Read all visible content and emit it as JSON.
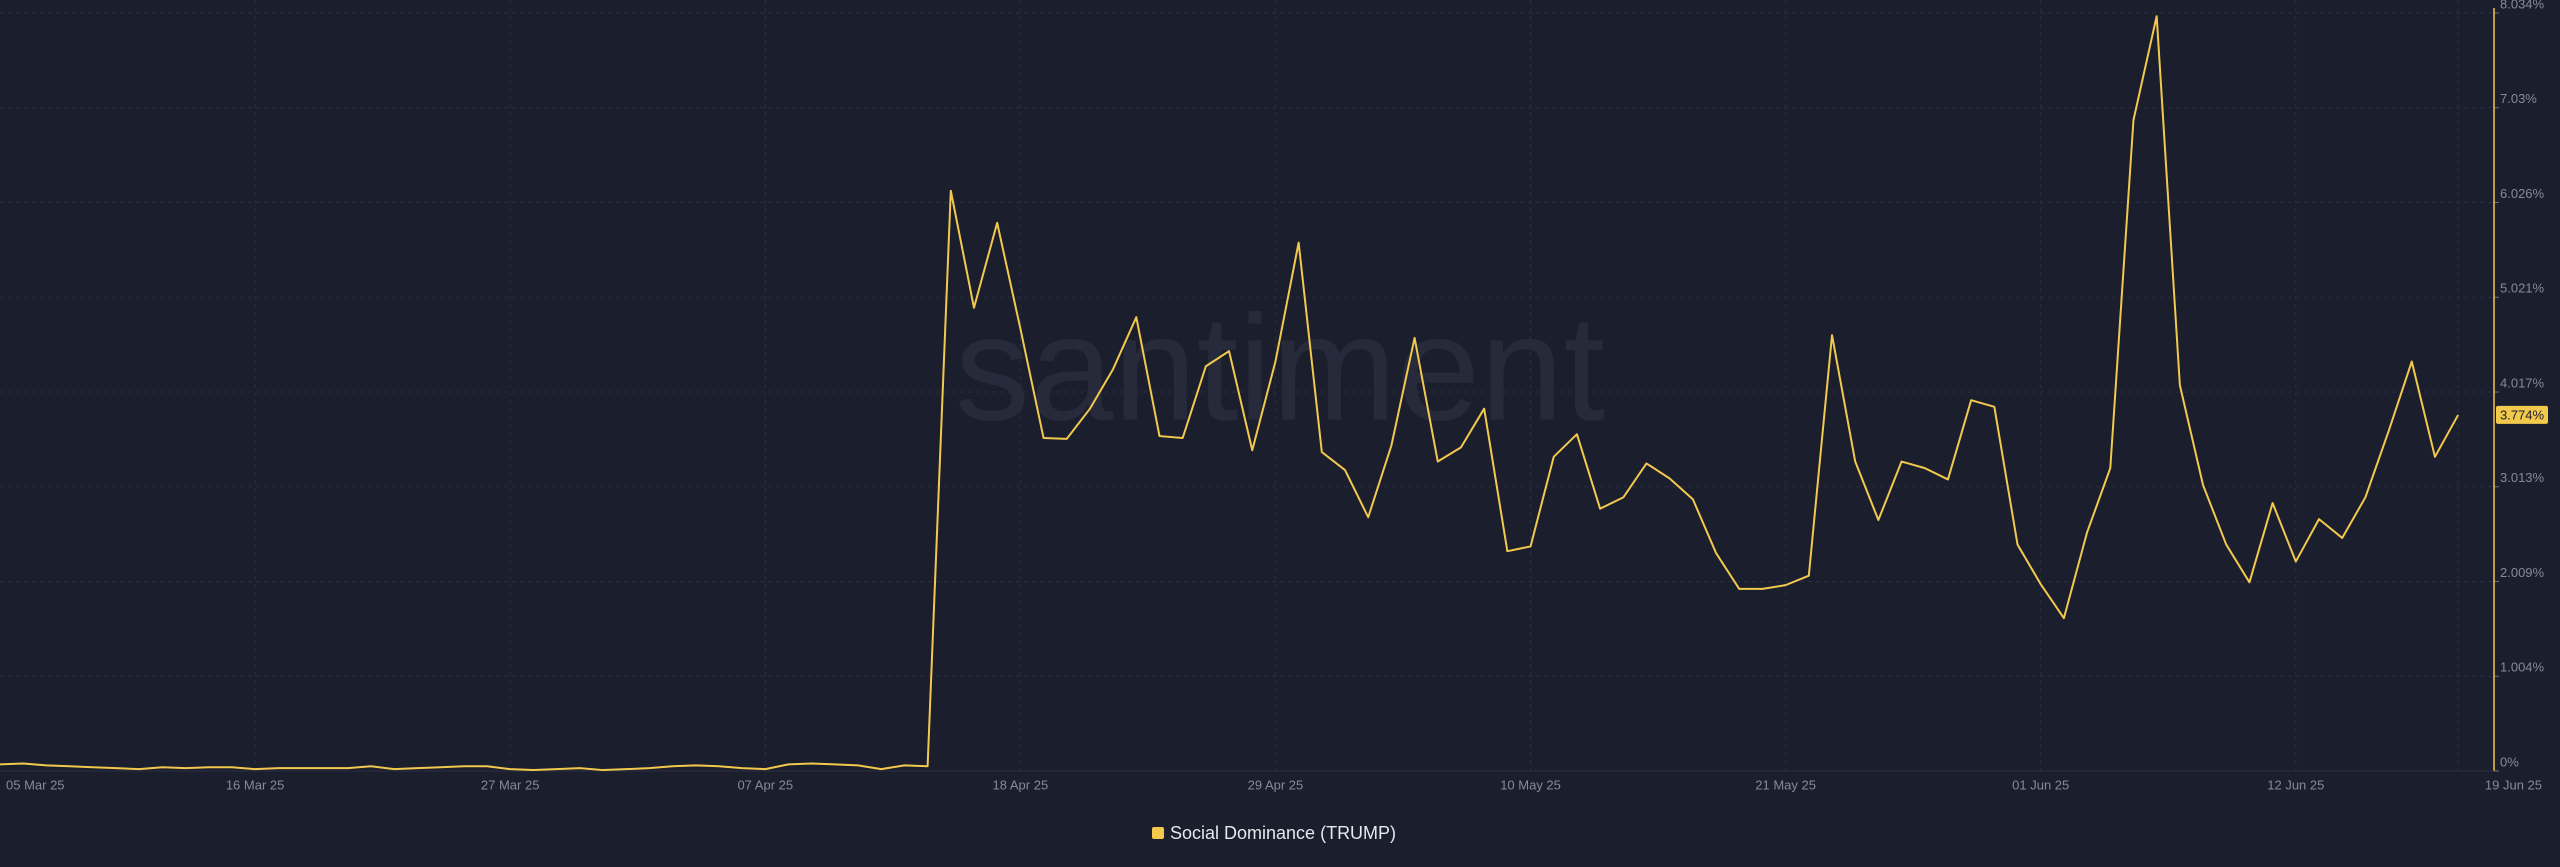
{
  "chart_data": {
    "type": "line",
    "watermark": "santiment",
    "categories": [
      "05 Mar 25",
      null,
      null,
      null,
      null,
      null,
      null,
      null,
      null,
      null,
      null,
      "16 Mar 25",
      null,
      null,
      null,
      null,
      null,
      null,
      null,
      null,
      null,
      null,
      "27 Mar 25",
      null,
      null,
      null,
      null,
      null,
      null,
      null,
      null,
      null,
      null,
      "07 Apr 25",
      null,
      null,
      null,
      null,
      null,
      null,
      null,
      null,
      null,
      null,
      "18 Apr 25",
      null,
      null,
      null,
      null,
      null,
      null,
      null,
      null,
      null,
      null,
      "29 Apr 25",
      null,
      null,
      null,
      null,
      null,
      null,
      null,
      null,
      null,
      null,
      "10 May 25",
      null,
      null,
      null,
      null,
      null,
      null,
      null,
      null,
      null,
      null,
      "21 May 25",
      null,
      null,
      null,
      null,
      null,
      null,
      null,
      null,
      null,
      null,
      "01 Jun 25",
      null,
      null,
      null,
      null,
      null,
      null,
      null,
      null,
      null,
      null,
      "12 Jun 25",
      null,
      null,
      null,
      null,
      null,
      null,
      "19 Jun 25"
    ],
    "series": [
      {
        "name": "Social Dominance (TRUMP)",
        "color": "#f3c94d",
        "values": [
          0.07,
          0.08,
          0.06,
          0.05,
          0.04,
          0.03,
          0.02,
          0.04,
          0.03,
          0.04,
          0.04,
          0.02,
          0.03,
          0.03,
          0.03,
          0.03,
          0.05,
          0.02,
          0.03,
          0.04,
          0.05,
          0.05,
          0.02,
          0.01,
          0.02,
          0.03,
          0.01,
          0.02,
          0.03,
          0.05,
          0.06,
          0.05,
          0.03,
          0.02,
          0.07,
          0.08,
          0.07,
          0.06,
          0.02,
          0.06,
          0.05,
          6.15,
          4.91,
          5.81,
          4.69,
          3.53,
          3.52,
          3.84,
          4.26,
          4.81,
          3.55,
          3.53,
          4.29,
          4.45,
          3.4,
          4.34,
          5.6,
          3.38,
          3.19,
          2.69,
          3.45,
          4.59,
          3.28,
          3.43,
          3.84,
          2.33,
          2.38,
          3.33,
          3.57,
          2.78,
          2.9,
          3.26,
          3.1,
          2.88,
          2.31,
          1.93,
          1.93,
          1.97,
          2.07,
          4.62,
          3.28,
          2.66,
          3.28,
          3.21,
          3.09,
          3.93,
          3.86,
          2.4,
          1.98,
          1.62,
          2.53,
          3.21,
          6.9,
          8.0,
          4.09,
          3.03,
          2.4,
          2.0,
          2.84,
          2.22,
          2.67,
          2.47,
          2.9,
          3.6,
          4.34,
          3.33,
          3.774
        ],
        "value_labels": [
          null,
          null,
          null,
          null,
          null,
          null,
          null,
          null,
          null,
          null,
          null,
          null,
          null,
          null,
          null,
          null,
          null,
          null,
          null,
          null,
          null,
          null,
          null,
          null,
          null,
          null,
          null,
          null,
          null,
          null,
          null,
          null,
          null,
          null,
          null,
          null,
          null,
          null,
          null,
          null,
          null,
          null,
          null,
          null,
          null,
          null,
          null,
          null,
          null,
          null,
          null,
          null,
          null,
          null,
          null,
          null,
          null,
          null,
          null,
          null,
          null,
          null,
          null,
          null,
          null,
          null,
          null,
          null,
          null,
          null,
          null,
          null,
          null,
          null,
          null,
          null,
          null,
          null,
          null,
          null,
          null,
          null,
          null,
          null,
          null,
          null,
          null,
          null,
          null,
          null,
          null,
          null,
          null,
          null,
          null,
          null,
          null,
          null,
          null,
          null,
          null,
          null,
          null,
          null,
          null,
          null,
          "3.774%"
        ]
      }
    ],
    "ylim": [
      0,
      8.034
    ],
    "yticks": [
      {
        "value": 0,
        "label": "0%"
      },
      {
        "value": 1.004,
        "label": "1.004%"
      },
      {
        "value": 2.009,
        "label": "2.009%"
      },
      {
        "value": 3.013,
        "label": "3.013%"
      },
      {
        "value": 4.017,
        "label": "4.017%"
      },
      {
        "value": 5.021,
        "label": "5.021%"
      },
      {
        "value": 6.026,
        "label": "6.026%"
      },
      {
        "value": 7.03,
        "label": "7.03%"
      },
      {
        "value": 8.034,
        "label": "8.034%"
      }
    ],
    "grid": true
  }
}
